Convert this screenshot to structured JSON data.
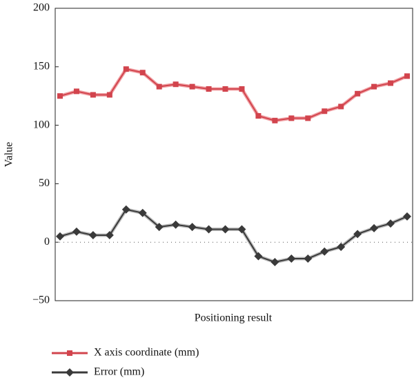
{
  "chart_data": {
    "type": "line",
    "ylabel": "Value",
    "xlabel": "Positioning result",
    "categories": [
      null,
      null,
      null,
      null,
      null,
      null,
      null,
      null,
      null,
      null,
      null,
      null,
      null,
      null,
      null,
      null,
      null,
      null,
      null,
      null,
      null,
      null
    ],
    "series": [
      {
        "name": "X axis coordinate (mm)",
        "color": "#d2444d",
        "marker": "square",
        "values": [
          125,
          129,
          126,
          126,
          148,
          145,
          133,
          135,
          133,
          131,
          131,
          131,
          108,
          104,
          106,
          106,
          112,
          116,
          127,
          133,
          136,
          142
        ]
      },
      {
        "name": "Error (mm)",
        "color": "#3a3a3a",
        "marker": "diamond",
        "values": [
          5,
          9,
          6,
          6,
          28,
          25,
          13,
          15,
          13,
          11,
          11,
          11,
          -12,
          -17,
          -14,
          -14,
          -8,
          -4,
          7,
          12,
          16,
          22
        ]
      }
    ],
    "ylim": [
      -50,
      200
    ],
    "yticks": [
      {
        "value": -50,
        "label": "−50"
      },
      0,
      50,
      100,
      150,
      200
    ],
    "zero_line": true
  }
}
